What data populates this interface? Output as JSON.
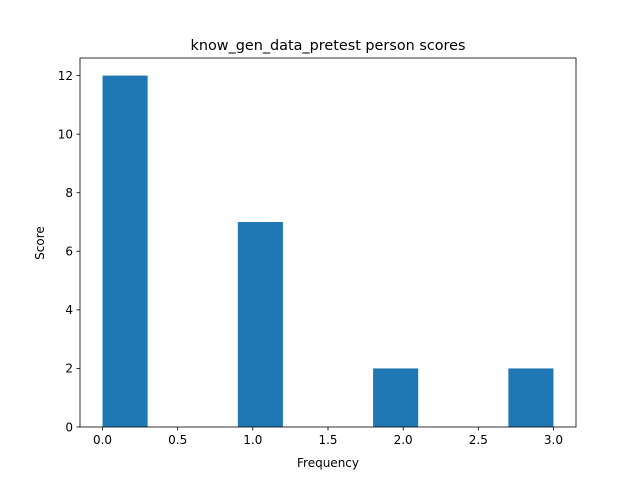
{
  "chart_data": {
    "type": "bar",
    "title": "know_gen_data_pretest person scores",
    "xlabel": "Frequency",
    "ylabel": "Score",
    "xlim": [
      -0.15,
      3.15
    ],
    "ylim": [
      0,
      12.6
    ],
    "xticks": [
      0.0,
      0.5,
      1.0,
      1.5,
      2.0,
      2.5,
      3.0
    ],
    "xtick_labels": [
      "0.0",
      "0.5",
      "1.0",
      "1.5",
      "2.0",
      "2.5",
      "3.0"
    ],
    "yticks": [
      0,
      2,
      4,
      6,
      8,
      10,
      12
    ],
    "ytick_labels": [
      "0",
      "2",
      "4",
      "6",
      "8",
      "10",
      "12"
    ],
    "bar_width": 0.3,
    "bars": [
      {
        "x_start": 0.0,
        "value": 12
      },
      {
        "x_start": 0.9,
        "value": 7
      },
      {
        "x_start": 1.8,
        "value": 2
      },
      {
        "x_start": 2.7,
        "value": 2
      }
    ],
    "bar_color": "#1f77b4",
    "grid": false
  }
}
